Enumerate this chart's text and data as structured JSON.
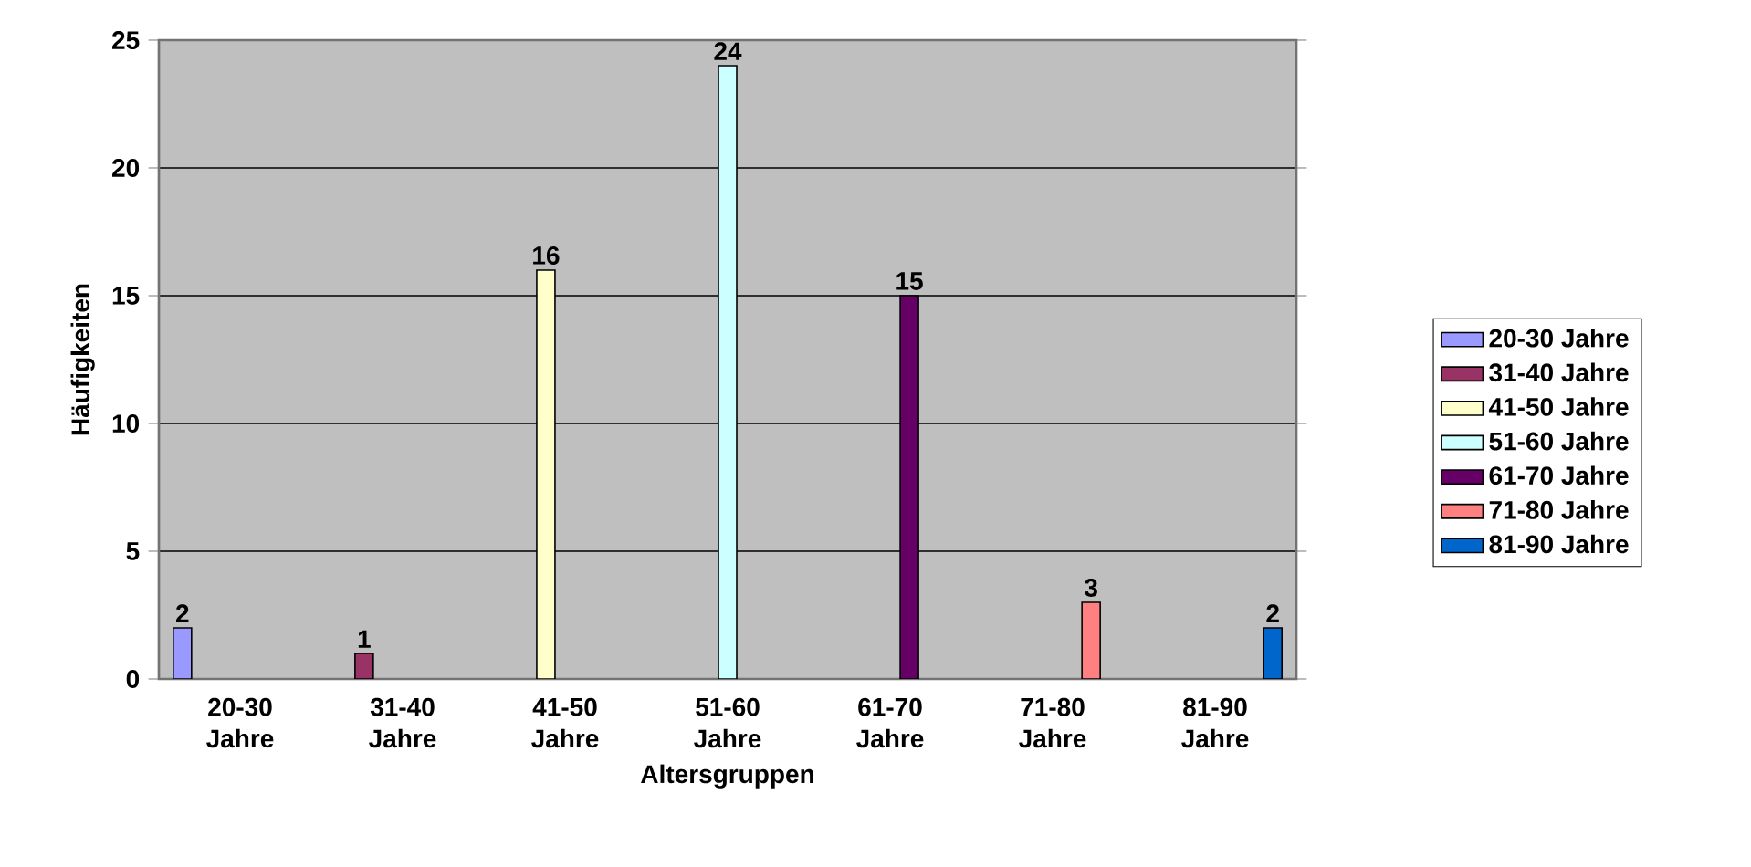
{
  "chart_data": {
    "type": "bar",
    "xlabel": "Altersgruppen",
    "ylabel": "Häufigkeiten",
    "categories": [
      "20-30 Jahre",
      "31-40 Jahre",
      "41-50 Jahre",
      "51-60 Jahre",
      "61-70 Jahre",
      "71-80 Jahre",
      "81-90 Jahre"
    ],
    "series": [
      {
        "name": "20-30 Jahre",
        "color": "#9999ff",
        "values": [
          2,
          null,
          null,
          null,
          null,
          null,
          null
        ]
      },
      {
        "name": "31-40 Jahre",
        "color": "#993366",
        "values": [
          null,
          1,
          null,
          null,
          null,
          null,
          null
        ]
      },
      {
        "name": "41-50 Jahre",
        "color": "#ffffcc",
        "values": [
          null,
          null,
          16,
          null,
          null,
          null,
          null
        ]
      },
      {
        "name": "51-60 Jahre",
        "color": "#ccffff",
        "values": [
          null,
          null,
          null,
          24,
          null,
          null,
          null
        ]
      },
      {
        "name": "61-70 Jahre",
        "color": "#660066",
        "values": [
          null,
          null,
          null,
          null,
          15,
          null,
          null
        ]
      },
      {
        "name": "71-80 Jahre",
        "color": "#ff8080",
        "values": [
          null,
          null,
          null,
          null,
          null,
          3,
          null
        ]
      },
      {
        "name": "81-90 Jahre",
        "color": "#0066cc",
        "values": [
          null,
          null,
          null,
          null,
          null,
          null,
          2
        ]
      }
    ],
    "ylim": [
      0,
      25
    ],
    "yticks": [
      0,
      5,
      10,
      15,
      20,
      25
    ],
    "grid": "y",
    "legend": "right",
    "data_labels": true
  }
}
